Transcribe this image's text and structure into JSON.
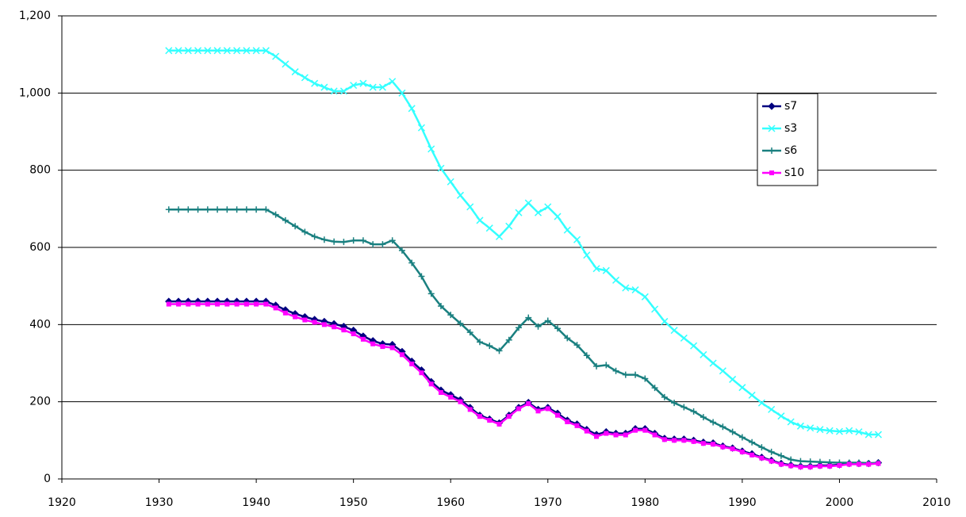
{
  "chart_data": {
    "type": "line",
    "x": [
      1931,
      1932,
      1933,
      1934,
      1935,
      1936,
      1937,
      1938,
      1939,
      1940,
      1941,
      1942,
      1943,
      1944,
      1945,
      1946,
      1947,
      1948,
      1949,
      1950,
      1951,
      1952,
      1953,
      1954,
      1955,
      1956,
      1957,
      1958,
      1959,
      1960,
      1961,
      1962,
      1963,
      1964,
      1965,
      1966,
      1967,
      1968,
      1969,
      1970,
      1971,
      1972,
      1973,
      1974,
      1975,
      1976,
      1977,
      1978,
      1979,
      1980,
      1981,
      1982,
      1983,
      1984,
      1985,
      1986,
      1987,
      1988,
      1989,
      1990,
      1991,
      1992,
      1993,
      1994,
      1995,
      1996,
      1997,
      1998,
      1999,
      2000,
      2001,
      2002,
      2003,
      2004
    ],
    "series": [
      {
        "name": "s7",
        "color": "#000080",
        "marker": "diamond",
        "values": [
          460,
          460,
          460,
          460,
          460,
          460,
          460,
          460,
          460,
          460,
          460,
          450,
          438,
          428,
          420,
          413,
          408,
          402,
          395,
          385,
          370,
          358,
          350,
          348,
          330,
          305,
          282,
          252,
          230,
          218,
          205,
          185,
          165,
          155,
          145,
          165,
          185,
          198,
          180,
          185,
          170,
          152,
          142,
          128,
          115,
          122,
          118,
          118,
          130,
          130,
          118,
          105,
          103,
          103,
          100,
          95,
          93,
          85,
          80,
          72,
          65,
          56,
          48,
          40,
          36,
          33,
          33,
          35,
          35,
          37,
          40,
          40,
          40,
          42
        ]
      },
      {
        "name": "s3",
        "color": "#33ffff",
        "marker": "x",
        "values": [
          1110,
          1110,
          1110,
          1110,
          1110,
          1110,
          1110,
          1110,
          1110,
          1110,
          1110,
          1095,
          1075,
          1055,
          1040,
          1025,
          1015,
          1005,
          1005,
          1020,
          1025,
          1015,
          1015,
          1030,
          1000,
          960,
          910,
          855,
          805,
          770,
          735,
          705,
          670,
          650,
          628,
          655,
          690,
          715,
          690,
          705,
          680,
          645,
          620,
          580,
          545,
          540,
          515,
          495,
          490,
          472,
          440,
          408,
          385,
          365,
          345,
          322,
          300,
          280,
          258,
          237,
          217,
          197,
          180,
          163,
          148,
          137,
          132,
          128,
          125,
          123,
          125,
          122,
          115,
          115
        ]
      },
      {
        "name": "s6",
        "color": "#1a8080",
        "marker": "plus",
        "values": [
          698,
          698,
          698,
          698,
          698,
          698,
          698,
          698,
          698,
          698,
          698,
          685,
          670,
          655,
          640,
          628,
          620,
          615,
          614,
          618,
          618,
          608,
          608,
          618,
          592,
          560,
          525,
          480,
          448,
          425,
          403,
          380,
          355,
          345,
          332,
          360,
          392,
          418,
          395,
          410,
          390,
          365,
          347,
          320,
          292,
          295,
          280,
          270,
          270,
          260,
          236,
          212,
          197,
          186,
          175,
          160,
          147,
          135,
          122,
          108,
          95,
          82,
          70,
          60,
          50,
          46,
          45,
          44,
          43,
          42,
          42,
          42,
          41,
          41
        ]
      },
      {
        "name": "s10",
        "color": "#ff00ff",
        "marker": "square",
        "values": [
          453,
          453,
          453,
          453,
          453,
          453,
          453,
          453,
          453,
          453,
          453,
          443,
          430,
          420,
          412,
          406,
          400,
          394,
          386,
          376,
          362,
          350,
          343,
          340,
          322,
          298,
          275,
          246,
          224,
          212,
          200,
          180,
          162,
          152,
          142,
          162,
          182,
          195,
          176,
          182,
          165,
          148,
          138,
          124,
          110,
          118,
          114,
          114,
          126,
          126,
          114,
          102,
          100,
          100,
          97,
          92,
          90,
          83,
          78,
          70,
          62,
          54,
          46,
          38,
          34,
          31,
          31,
          33,
          33,
          35,
          38,
          38,
          38,
          40
        ]
      }
    ],
    "xlim": [
      1920,
      2010
    ],
    "xticks": [
      1920,
      1930,
      1940,
      1950,
      1960,
      1970,
      1980,
      1990,
      2000,
      2010
    ],
    "ylim": [
      0,
      1200
    ],
    "yticks": [
      0,
      200,
      400,
      600,
      800,
      {
        "value": 1000,
        "label": "1,000"
      },
      {
        "value": 1200,
        "label": "1,200"
      }
    ],
    "grid": true,
    "legend_position": "right"
  }
}
